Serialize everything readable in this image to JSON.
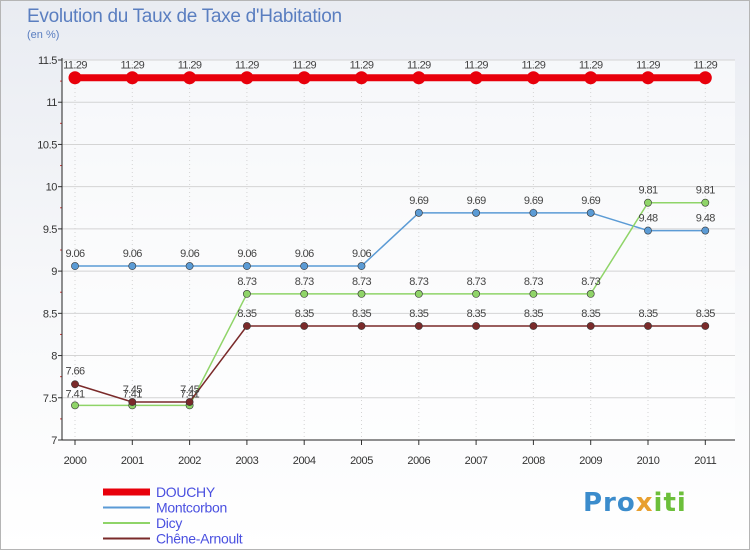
{
  "title": "Evolution du Taux de Taxe d'Habitation",
  "unit": "(en %)",
  "brand": {
    "p": "Pro",
    "x": "x",
    "i": "iti"
  },
  "chart_data": {
    "type": "line",
    "title": "Evolution du Taux de Taxe d'Habitation",
    "ylabel": "(en %)",
    "xlabel": "",
    "ylim": [
      7,
      11.5
    ],
    "yticks": [
      "7",
      "7.5",
      "8",
      "8.5",
      "9",
      "9.5",
      "10",
      "10.5",
      "11",
      "11.5"
    ],
    "categories": [
      "2000",
      "2001",
      "2002",
      "2003",
      "2004",
      "2005",
      "2006",
      "2007",
      "2008",
      "2009",
      "2010",
      "2011"
    ],
    "series": [
      {
        "name": "DOUCHY",
        "color": "#e8000b",
        "values": [
          11.29,
          11.29,
          11.29,
          11.29,
          11.29,
          11.29,
          11.29,
          11.29,
          11.29,
          11.29,
          11.29,
          11.29
        ],
        "labels": [
          "11.29",
          "11.29",
          "11.29",
          "11.29",
          "11.29",
          "11.29",
          "11.29",
          "11.29",
          "11.29",
          "11.29",
          "11.29",
          "11.29"
        ]
      },
      {
        "name": "Montcorbon",
        "color": "#5b9bd5",
        "values": [
          9.06,
          9.06,
          9.06,
          9.06,
          9.06,
          9.06,
          9.69,
          9.69,
          9.69,
          9.69,
          9.48,
          9.48
        ],
        "labels": [
          "9.06",
          "9.06",
          "9.06",
          "9.06",
          "9.06",
          "9.06",
          "9.69",
          "9.69",
          "9.69",
          "9.69",
          "9.48",
          "9.48"
        ]
      },
      {
        "name": "Dicy",
        "color": "#8fd468",
        "values": [
          7.41,
          7.41,
          7.41,
          8.73,
          8.73,
          8.73,
          8.73,
          8.73,
          8.73,
          8.73,
          9.81,
          9.81
        ],
        "labels": [
          "7.41",
          "7.41",
          "7.41",
          "8.73",
          "8.73",
          "8.73",
          "8.73",
          "8.73",
          "8.73",
          "8.73",
          "9.81",
          "9.81"
        ]
      },
      {
        "name": "Chêne-Arnoult",
        "color": "#7a2a2a",
        "values": [
          7.66,
          7.45,
          7.45,
          8.35,
          8.35,
          8.35,
          8.35,
          8.35,
          8.35,
          8.35,
          8.35,
          8.35
        ],
        "labels": [
          "7.66",
          "7.45",
          "7.45",
          "8.35",
          "8.35",
          "8.35",
          "8.35",
          "8.35",
          "8.35",
          "8.35",
          "8.35",
          "8.35"
        ]
      }
    ],
    "legend_position": "bottom-left"
  }
}
